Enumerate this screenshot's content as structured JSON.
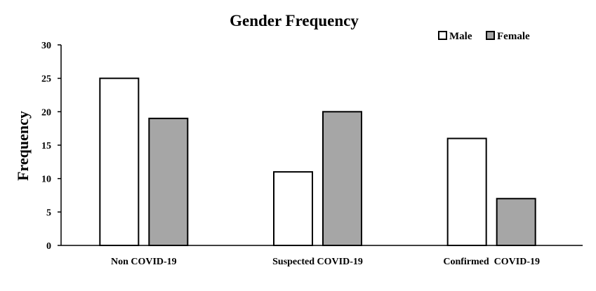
{
  "chart_data": {
    "type": "bar",
    "title": "Gender Frequency",
    "xlabel": "",
    "ylabel": "Frequency",
    "categories": [
      "Non COVID-19",
      "Suspected COVID-19",
      "Confirmed  COVID-19"
    ],
    "series": [
      {
        "name": "Male",
        "values": [
          25,
          11,
          16
        ],
        "color": "#ffffff"
      },
      {
        "name": "Female",
        "values": [
          19,
          20,
          7
        ],
        "color": "#a6a6a6"
      }
    ],
    "ylim": [
      0,
      30
    ],
    "yticks": [
      "0",
      "5",
      "10",
      "15",
      "20",
      "25",
      "30"
    ],
    "grid": false,
    "legend_position": "top-right"
  }
}
